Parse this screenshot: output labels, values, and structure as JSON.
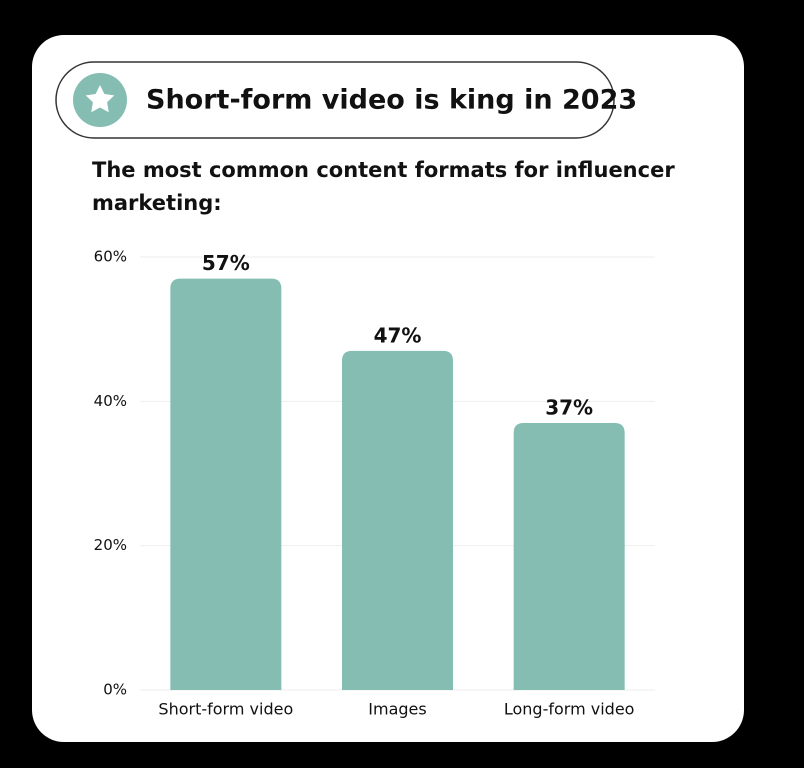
{
  "chart_data": {
    "type": "bar",
    "title": "Short-form video is king in 2023",
    "subtitle": "The most common content formats for influencer marketing:",
    "categories": [
      "Short-form video",
      "Images",
      "Long-form video"
    ],
    "values": [
      57,
      47,
      37
    ],
    "value_labels": [
      "57%",
      "47%",
      "37%"
    ],
    "color": "#85bdb2",
    "ylim": [
      0,
      60
    ],
    "yticks": [
      {
        "value": 0,
        "label": "0%"
      },
      {
        "value": 20,
        "label": "20%"
      },
      {
        "value": 40,
        "label": "40%"
      },
      {
        "value": 60,
        "label": "60%"
      }
    ],
    "grid": true
  }
}
